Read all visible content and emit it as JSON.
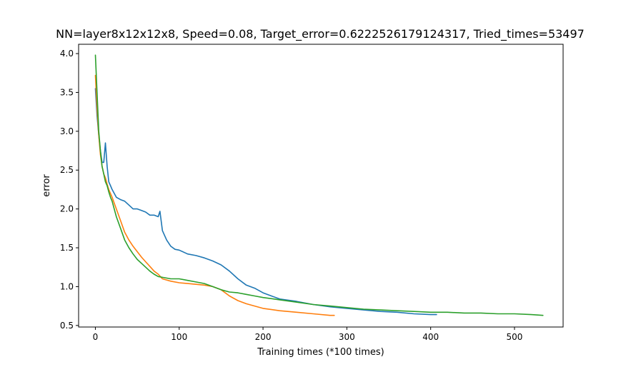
{
  "chart_data": {
    "type": "line",
    "title": "NN=layer8x12x12x8, Speed=0.08, Target_error=0.6222526179124317, Tried_times=53497",
    "xlabel": "Training times (*100 times)",
    "ylabel": "error",
    "xlim": [
      -20,
      558
    ],
    "ylim": [
      0.48,
      4.12
    ],
    "xticks": [
      0,
      100,
      200,
      300,
      400,
      500
    ],
    "xtick_labels": [
      "0",
      "100",
      "200",
      "300",
      "400",
      "500"
    ],
    "yticks": [
      0.5,
      1.0,
      1.5,
      2.0,
      2.5,
      3.0,
      3.5,
      4.0
    ],
    "ytick_labels": [
      "0.5",
      "1.0",
      "1.5",
      "2.0",
      "2.5",
      "3.0",
      "3.5",
      "4.0"
    ],
    "grid": false,
    "legend": "none",
    "series": [
      {
        "color": "#1f77b4",
        "x": [
          0,
          2,
          4,
          6,
          8,
          10,
          12,
          14,
          16,
          18,
          20,
          25,
          30,
          35,
          40,
          45,
          50,
          55,
          60,
          65,
          70,
          75,
          77,
          80,
          85,
          90,
          95,
          100,
          110,
          120,
          130,
          140,
          150,
          160,
          170,
          180,
          190,
          200,
          210,
          220,
          240,
          260,
          280,
          300,
          320,
          340,
          360,
          380,
          400,
          407
        ],
        "y": [
          3.55,
          3.2,
          2.95,
          2.75,
          2.6,
          2.6,
          2.85,
          2.55,
          2.35,
          2.3,
          2.25,
          2.15,
          2.12,
          2.1,
          2.05,
          2.0,
          2.0,
          1.98,
          1.96,
          1.92,
          1.92,
          1.9,
          1.97,
          1.72,
          1.6,
          1.52,
          1.48,
          1.47,
          1.42,
          1.4,
          1.37,
          1.33,
          1.28,
          1.2,
          1.1,
          1.02,
          0.98,
          0.92,
          0.88,
          0.84,
          0.81,
          0.77,
          0.74,
          0.72,
          0.7,
          0.68,
          0.67,
          0.65,
          0.64,
          0.64
        ]
      },
      {
        "color": "#ff7f0e",
        "x": [
          0,
          2,
          4,
          6,
          8,
          10,
          12,
          14,
          16,
          18,
          20,
          25,
          30,
          35,
          40,
          45,
          50,
          55,
          60,
          65,
          70,
          75,
          80,
          90,
          100,
          110,
          120,
          130,
          140,
          150,
          160,
          170,
          180,
          190,
          200,
          220,
          240,
          260,
          280,
          285
        ],
        "y": [
          3.72,
          3.3,
          2.95,
          2.7,
          2.55,
          2.45,
          2.4,
          2.32,
          2.25,
          2.2,
          2.15,
          2.0,
          1.85,
          1.7,
          1.6,
          1.52,
          1.45,
          1.38,
          1.32,
          1.26,
          1.2,
          1.16,
          1.1,
          1.07,
          1.05,
          1.04,
          1.03,
          1.02,
          1.0,
          0.96,
          0.88,
          0.82,
          0.78,
          0.75,
          0.72,
          0.69,
          0.67,
          0.65,
          0.63,
          0.63
        ]
      },
      {
        "color": "#2ca02c",
        "x": [
          0,
          2,
          4,
          6,
          8,
          10,
          12,
          14,
          16,
          18,
          20,
          25,
          30,
          35,
          40,
          45,
          50,
          55,
          60,
          65,
          70,
          75,
          80,
          90,
          100,
          110,
          120,
          130,
          140,
          150,
          160,
          170,
          180,
          190,
          200,
          220,
          240,
          260,
          280,
          300,
          320,
          340,
          360,
          380,
          400,
          420,
          440,
          460,
          480,
          500,
          520,
          534
        ],
        "y": [
          3.98,
          3.5,
          3.0,
          2.75,
          2.55,
          2.45,
          2.35,
          2.3,
          2.22,
          2.15,
          2.1,
          1.9,
          1.75,
          1.6,
          1.5,
          1.42,
          1.35,
          1.3,
          1.25,
          1.2,
          1.16,
          1.13,
          1.12,
          1.1,
          1.1,
          1.08,
          1.06,
          1.04,
          1.0,
          0.96,
          0.93,
          0.92,
          0.9,
          0.88,
          0.86,
          0.83,
          0.8,
          0.77,
          0.75,
          0.73,
          0.71,
          0.7,
          0.69,
          0.68,
          0.67,
          0.67,
          0.66,
          0.66,
          0.65,
          0.65,
          0.64,
          0.63
        ]
      }
    ]
  }
}
